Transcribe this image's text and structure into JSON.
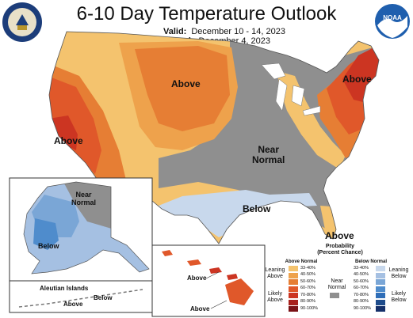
{
  "title": "6-10 Day Temperature Outlook",
  "valid": {
    "label": "Valid:",
    "value": "December 10 - 14, 2023"
  },
  "issued": {
    "label": "Issued:",
    "value": "December 4, 2023"
  },
  "logos": {
    "left": "DOC seal",
    "right": "NOAA"
  },
  "regions": {
    "above_plains": "Above",
    "above_west": "Above",
    "above_northeast": "Above",
    "above_florida": "Above",
    "near_normal_center": "Near\nNormal",
    "below_south": "Below",
    "near_normal_alaska": "Near\nNormal",
    "below_alaska": "Below",
    "above_hawaii": "Above",
    "aleutian_title": "Aleutian Islands",
    "aleutian_above": "Above",
    "aleutian_below": "Below"
  },
  "legend": {
    "title": "Probability\n(Percent Chance)",
    "above_header": "Above Normal",
    "below_header": "Below Normal",
    "near_label": "Near\nNormal",
    "leaning_above": "Leaning\nAbove",
    "likely_above": "Likely\nAbove",
    "leaning_below": "Leaning\nBelow",
    "likely_below": "Likely\nBelow",
    "bins": [
      "33-40%",
      "40-50%",
      "50-60%",
      "60-70%",
      "70-80%",
      "80-90%",
      "90-100%"
    ],
    "above_colors": [
      "#f4c36e",
      "#eea24c",
      "#e67e34",
      "#e0582a",
      "#cc3522",
      "#a8201c",
      "#7a1216"
    ],
    "below_colors": [
      "#c8d8ec",
      "#a5c0e2",
      "#7aa6d6",
      "#4f8ccc",
      "#2f6eb8",
      "#1e4c8c",
      "#15306a"
    ],
    "near_color": "#8f8f8f"
  }
}
